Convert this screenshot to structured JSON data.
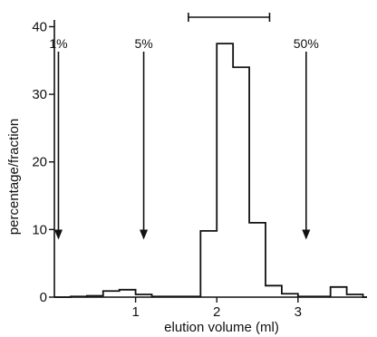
{
  "chart_data": {
    "type": "line",
    "step": true,
    "xlabel": "elution volume (ml)",
    "ylabel": "percentage/fraction",
    "xlim": [
      0,
      3.85
    ],
    "ylim": [
      0,
      41
    ],
    "xticks": [
      1,
      2,
      3
    ],
    "yticks": [
      0,
      10,
      20,
      30,
      40
    ],
    "grid": false,
    "x": [
      0,
      0.2,
      0.4,
      0.6,
      0.8,
      1.0,
      1.2,
      1.4,
      1.6,
      1.8,
      2.0,
      2.2,
      2.4,
      2.6,
      2.8,
      3.0,
      3.2,
      3.4,
      3.6,
      3.8
    ],
    "values": [
      0,
      0.1,
      0.2,
      0.9,
      1.1,
      0.4,
      0.1,
      0.1,
      0.1,
      9.8,
      37.5,
      34,
      11,
      1.7,
      0.5,
      0.1,
      0.1,
      1.5,
      0.4,
      0
    ],
    "annotations": [
      {
        "label": "1%",
        "x": 0.05,
        "arrow_y": 8.5
      },
      {
        "label": "5%",
        "x": 1.1,
        "arrow_y": 8.5
      },
      {
        "label": "50%",
        "x": 3.1,
        "arrow_y": 8.5
      }
    ],
    "bracket": {
      "x_start": 1.65,
      "x_end": 2.65,
      "y": 41.5
    }
  }
}
